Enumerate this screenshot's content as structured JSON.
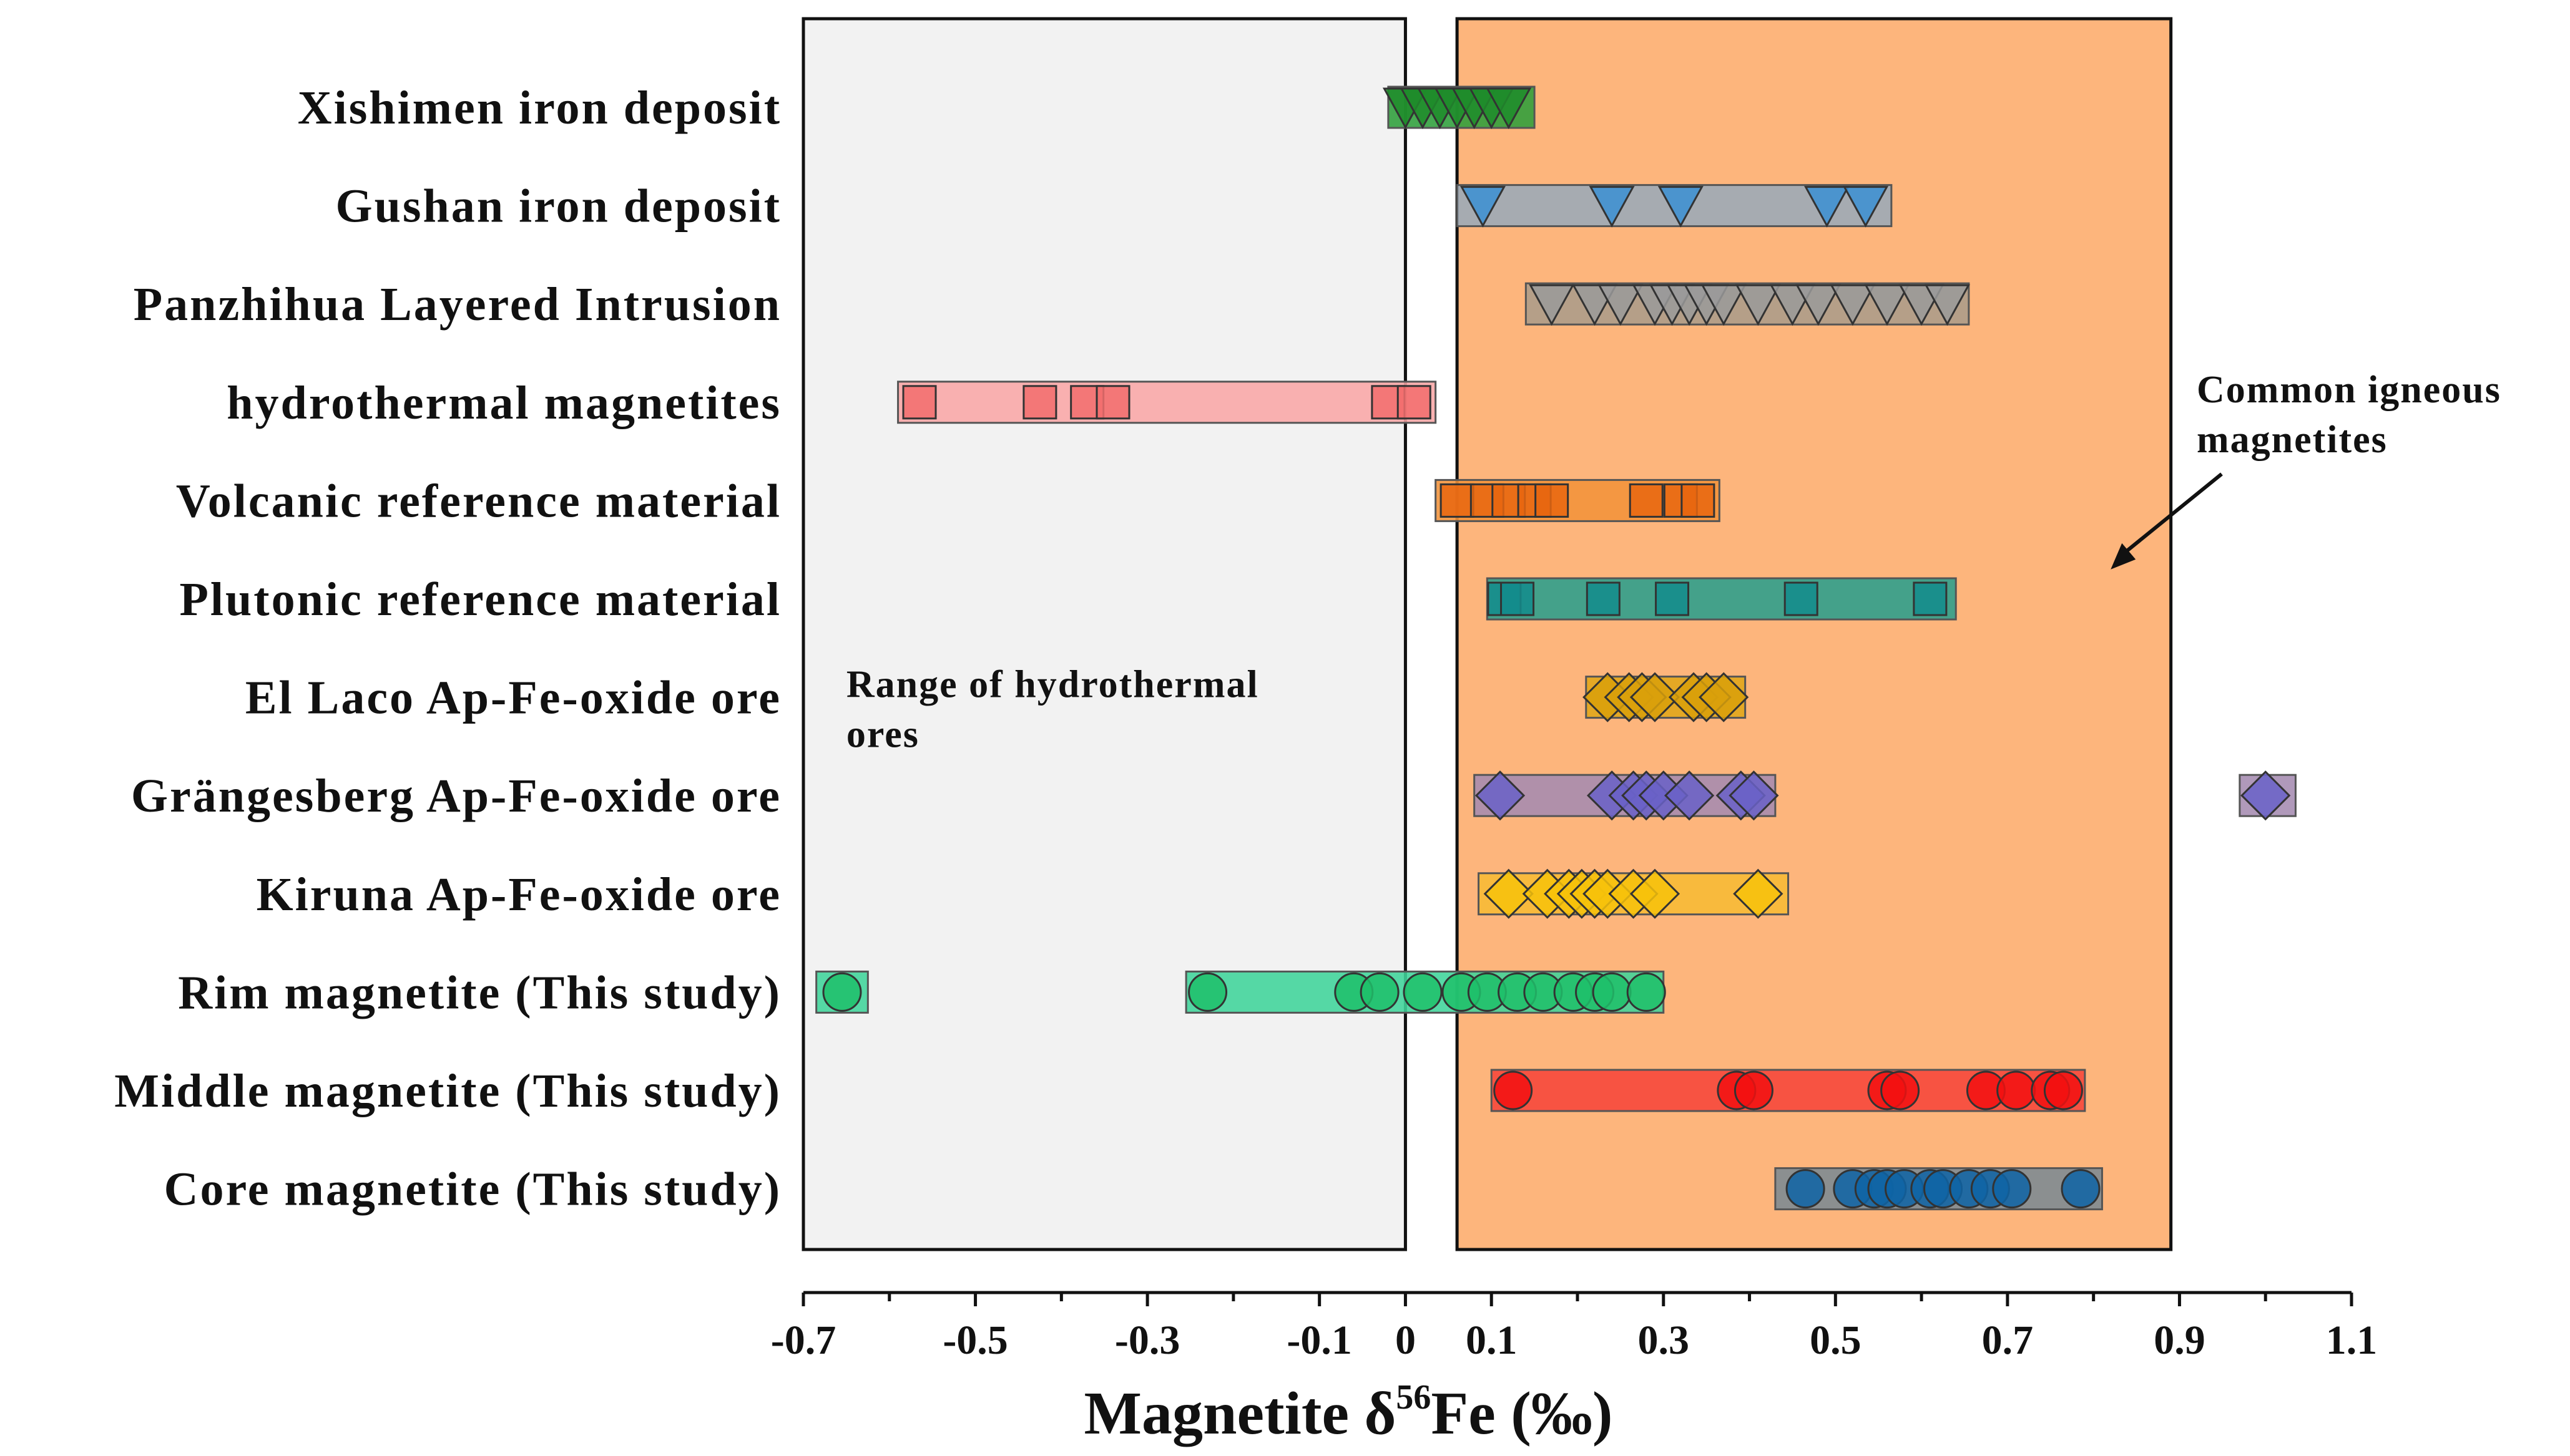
{
  "chart_data": {
    "type": "scatter",
    "title": "",
    "xlabel": {
      "main": "Magnetite δ",
      "superscript": "56",
      "suffix": "Fe (‰)"
    },
    "ylabel": "",
    "xlim": [
      -0.7,
      1.1
    ],
    "x_ticks": [
      -0.7,
      -0.6,
      -0.5,
      -0.4,
      -0.3,
      -0.2,
      -0.1,
      0,
      0.1,
      0.2,
      0.3,
      0.4,
      0.5,
      0.6,
      0.7,
      0.8,
      0.9,
      1.0,
      1.1
    ],
    "x_tick_labels": [
      {
        "value": -0.7,
        "label": "-0.7"
      },
      {
        "value": -0.5,
        "label": "-0.5"
      },
      {
        "value": -0.3,
        "label": "-0.3"
      },
      {
        "value": -0.1,
        "label": "-0.1"
      },
      {
        "value": 0,
        "label": "0"
      },
      {
        "value": 0.1,
        "label": "0.1"
      },
      {
        "value": 0.3,
        "label": "0.3"
      },
      {
        "value": 0.5,
        "label": "0.5"
      },
      {
        "value": 0.7,
        "label": "0.7"
      },
      {
        "value": 0.9,
        "label": "0.9"
      },
      {
        "value": 1.1,
        "label": "1.1"
      }
    ],
    "regions": [
      {
        "name": "Range of hydrothermal ores",
        "x_range": [
          -0.7,
          0
        ],
        "fill": "#f2f2f2"
      },
      {
        "name": "Common igneous magnetites",
        "x_range": [
          0.06,
          0.89
        ],
        "fill": "#fdb57c"
      }
    ],
    "annotations": [
      {
        "lines": [
          "Range of hydrothermal",
          "ores"
        ],
        "x": -0.65,
        "y_category_index": 6
      },
      {
        "lines": [
          "Common igneous",
          "magnetites"
        ],
        "x": 0.92,
        "y_category_index": 3,
        "arrow_to": {
          "x": 0.82,
          "y_category_index": 4.7
        }
      }
    ],
    "series": [
      {
        "name": "Xishimen iron deposit",
        "marker": "triangle-down",
        "color": "#1e8c2a",
        "bar_color": "#2e9e3a",
        "ranges": [
          [
            -0.02,
            0.15
          ]
        ],
        "values": [
          0.0,
          0.02,
          0.04,
          0.06,
          0.08,
          0.1,
          0.12
        ]
      },
      {
        "name": "Gushan iron deposit",
        "marker": "triangle-down",
        "color": "#3b8fd4",
        "bar_color": "#9aaab8",
        "ranges": [
          [
            0.06,
            0.565
          ]
        ],
        "values": [
          0.09,
          0.24,
          0.32,
          0.49,
          0.535
        ]
      },
      {
        "name": "Panzhihua Layered Intrusion",
        "marker": "triangle-down",
        "color": "#9a9a9a",
        "bar_color": "#ab9c8a",
        "ranges": [
          [
            0.14,
            0.655
          ]
        ],
        "values": [
          0.17,
          0.22,
          0.25,
          0.29,
          0.31,
          0.33,
          0.35,
          0.37,
          0.41,
          0.45,
          0.48,
          0.52,
          0.56,
          0.6,
          0.63
        ]
      },
      {
        "name": "hydrothermal magnetites",
        "marker": "square",
        "color": "#f26d6d",
        "bar_color": "#f9a6a6",
        "ranges": [
          [
            -0.59,
            0.035
          ]
        ],
        "values": [
          -0.565,
          -0.425,
          -0.37,
          -0.34,
          -0.02,
          0.01
        ]
      },
      {
        "name": "Volcanic reference material",
        "marker": "square",
        "color": "#e8660f",
        "bar_color": "#f2933a",
        "ranges": [
          [
            0.035,
            0.365
          ]
        ],
        "values": [
          0.06,
          0.095,
          0.12,
          0.15,
          0.17,
          0.28,
          0.32,
          0.34
        ]
      },
      {
        "name": "Plutonic reference material",
        "marker": "square",
        "color": "#138c8c",
        "bar_color": "#2a9e8c",
        "ranges": [
          [
            0.095,
            0.64
          ]
        ],
        "values": [
          0.115,
          0.13,
          0.23,
          0.31,
          0.46,
          0.61
        ]
      },
      {
        "name": "El Laco Ap-Fe-oxide ore",
        "marker": "diamond",
        "color": "#d9a00a",
        "bar_color": "#e0a619",
        "ranges": [
          [
            0.21,
            0.395
          ]
        ],
        "values": [
          0.235,
          0.26,
          0.275,
          0.29,
          0.335,
          0.35,
          0.37
        ]
      },
      {
        "name": "Grängesberg Ap-Fe-oxide ore",
        "marker": "diamond",
        "color": "#6a62c8",
        "bar_color": "#a58bb0",
        "ranges": [
          [
            0.08,
            0.43
          ],
          [
            0.97,
            1.035
          ]
        ],
        "values": [
          0.11,
          0.24,
          0.265,
          0.28,
          0.3,
          0.33,
          0.39,
          0.405,
          1.0
        ]
      },
      {
        "name": "Kiruna Ap-Fe-oxide ore",
        "marker": "diamond",
        "color": "#f7c20a",
        "bar_color": "#f7bb34",
        "ranges": [
          [
            0.085,
            0.445
          ]
        ],
        "values": [
          0.12,
          0.165,
          0.19,
          0.205,
          0.22,
          0.235,
          0.265,
          0.29,
          0.41
        ]
      },
      {
        "name": "Rim magnetite (This study)",
        "marker": "circle",
        "color": "#1fc06a",
        "bar_color": "#3fd49a",
        "ranges": [
          [
            -0.685,
            -0.625
          ],
          [
            -0.255,
            0.3
          ]
        ],
        "values": [
          -0.655,
          -0.23,
          -0.06,
          -0.03,
          0.02,
          0.065,
          0.095,
          0.13,
          0.16,
          0.195,
          0.22,
          0.24,
          0.28
        ]
      },
      {
        "name": "Middle magnetite (This study)",
        "marker": "circle",
        "color": "#f21010",
        "bar_color": "#f6453a",
        "ranges": [
          [
            0.1,
            0.79
          ]
        ],
        "values": [
          0.125,
          0.385,
          0.405,
          0.56,
          0.575,
          0.675,
          0.71,
          0.75,
          0.765
        ]
      },
      {
        "name": "Core magnetite (This study)",
        "marker": "circle",
        "color": "#0e64a6",
        "bar_color": "#7b8a93",
        "ranges": [
          [
            0.43,
            0.81
          ]
        ],
        "values": [
          0.465,
          0.52,
          0.545,
          0.56,
          0.58,
          0.61,
          0.625,
          0.655,
          0.68,
          0.705,
          0.785
        ]
      }
    ]
  }
}
